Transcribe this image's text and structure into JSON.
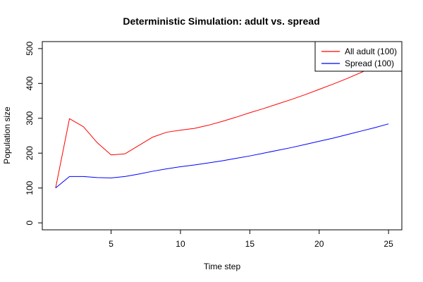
{
  "chart_data": {
    "type": "line",
    "title": "Deterministic Simulation: adult vs. spread",
    "xlabel": "Time step",
    "ylabel": "Population size",
    "xlim": [
      0.04,
      25.96
    ],
    "ylim": [
      -20,
      520
    ],
    "x_ticks": [
      5,
      10,
      15,
      20,
      25
    ],
    "y_ticks": [
      0,
      100,
      200,
      300,
      400,
      500
    ],
    "grid": false,
    "legend_position": "top-right",
    "x": [
      1,
      2,
      3,
      4,
      5,
      6,
      7,
      8,
      9,
      10,
      11,
      12,
      13,
      14,
      15,
      16,
      17,
      18,
      19,
      20,
      21,
      22,
      23,
      24,
      25
    ],
    "series": [
      {
        "name": "All adult (100)",
        "color": "#ff0000",
        "values": [
          100,
          299,
          276,
          230,
          195,
          198,
          222,
          246,
          260,
          266,
          271,
          280,
          291,
          303,
          316,
          328,
          341,
          354,
          368,
          383,
          398,
          414,
          431,
          449,
          468
        ]
      },
      {
        "name": "Spread (100)",
        "color": "#0000ff",
        "values": [
          100,
          133,
          133,
          130,
          129,
          133,
          140,
          148,
          155,
          161,
          166,
          172,
          178,
          185,
          192,
          200,
          208,
          216,
          225,
          234,
          243,
          253,
          263,
          273,
          284
        ]
      }
    ]
  }
}
